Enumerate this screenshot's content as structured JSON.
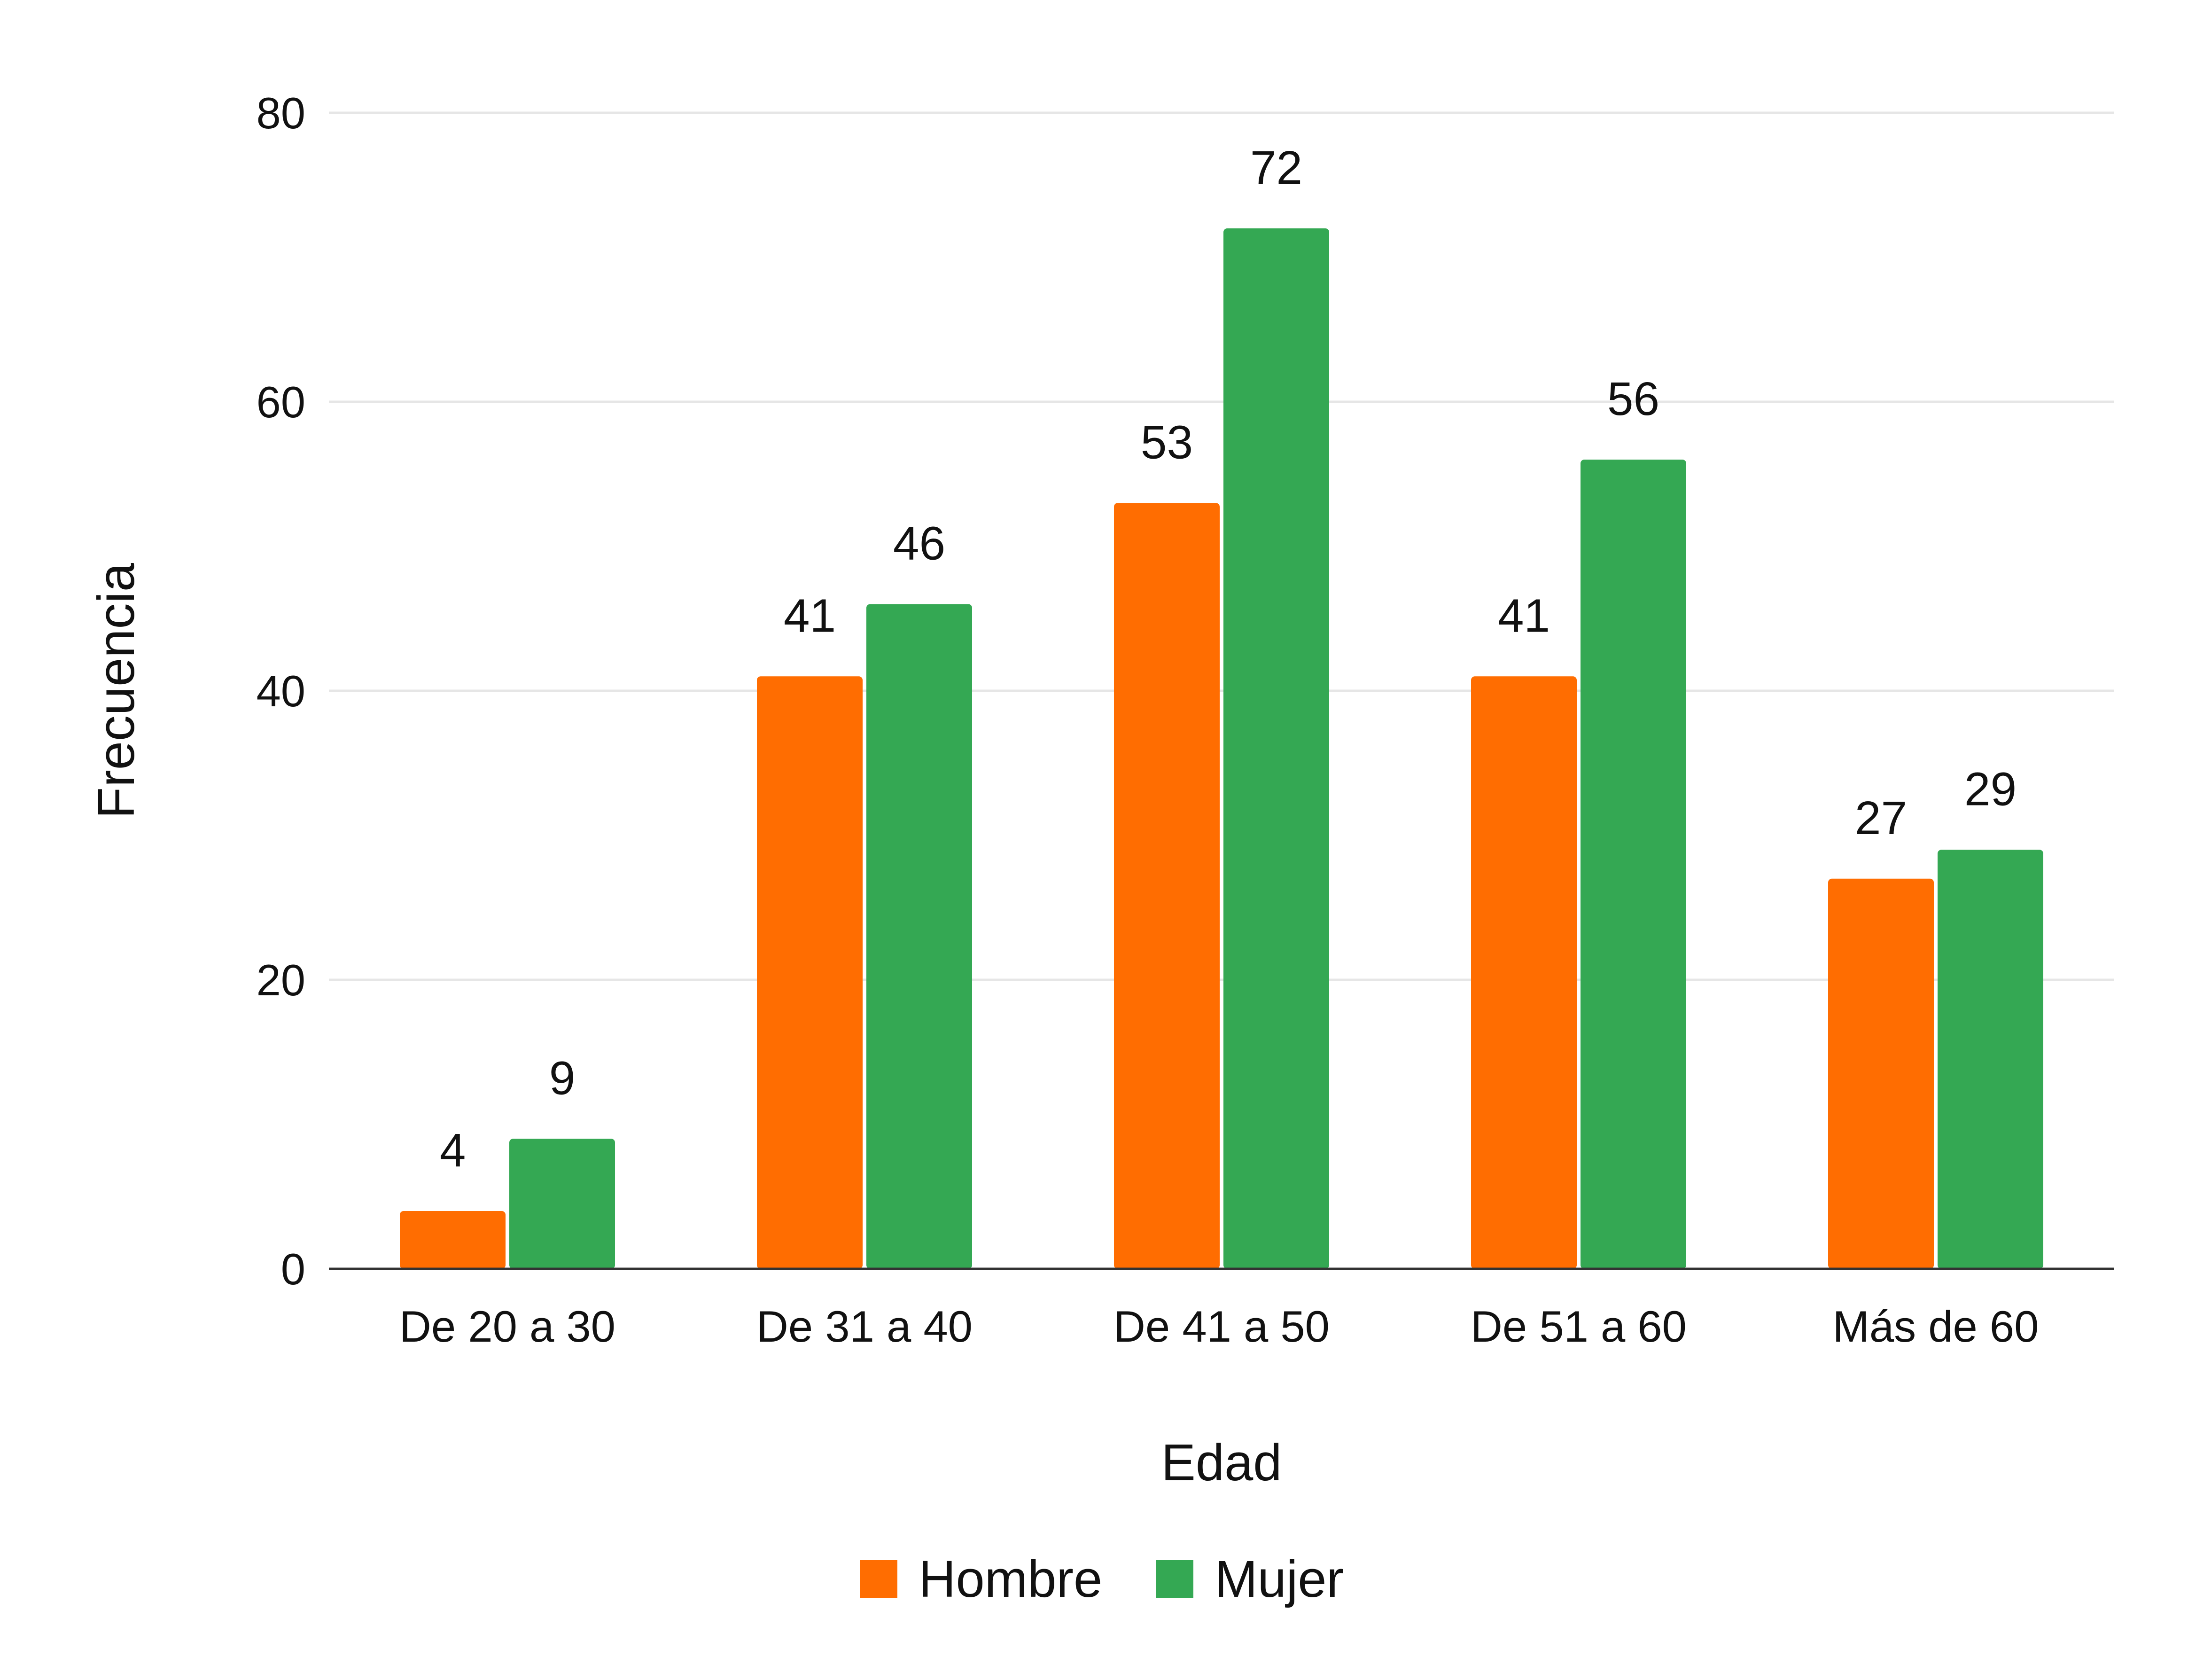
{
  "chart_data": {
    "type": "bar",
    "title": "",
    "xlabel": "Edad",
    "ylabel": "Frecuencia",
    "categories": [
      "De 20 a 30",
      "De 31 a 40",
      "De 41 a 50",
      "De 51 a 60",
      "Más de 60"
    ],
    "series": [
      {
        "name": "Hombre",
        "color": "#ff6d01",
        "values": [
          4,
          41,
          53,
          41,
          27
        ]
      },
      {
        "name": "Mujer",
        "color": "#34a853",
        "values": [
          9,
          46,
          72,
          56,
          29
        ]
      }
    ],
    "ylim": [
      0,
      80
    ],
    "yticks": [
      0,
      20,
      40,
      60,
      80
    ],
    "grid": true,
    "legend": "bottom-center",
    "data_labels": true
  }
}
